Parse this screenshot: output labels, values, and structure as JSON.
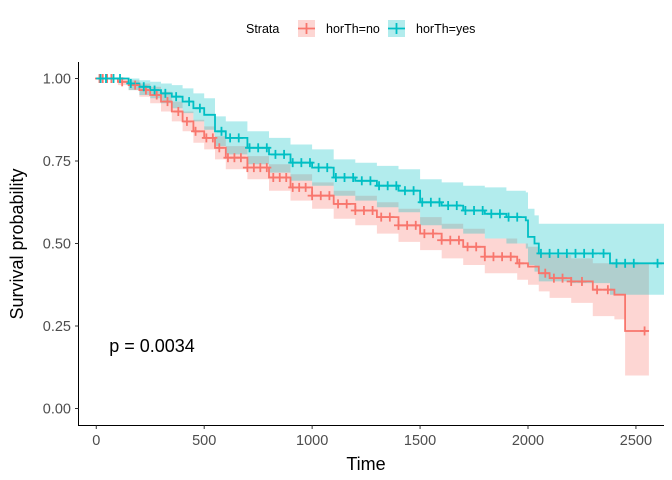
{
  "chart_data": {
    "type": "line",
    "subtype": "kaplan-meier survival curve with confidence bands and censor marks",
    "title": "",
    "xlabel": "Time",
    "ylabel": "Survival probability",
    "xlim": [
      -80,
      2630
    ],
    "ylim": [
      -0.05,
      1.05
    ],
    "xticks": [
      0,
      500,
      1000,
      1500,
      2000,
      2500
    ],
    "yticks": [
      0.0,
      0.25,
      0.5,
      0.75,
      1.0
    ],
    "xtick_labels": [
      "0",
      "500",
      "1000",
      "1500",
      "2000",
      "2500"
    ],
    "ytick_labels": [
      "0.00",
      "0.25",
      "0.50",
      "0.75",
      "1.00"
    ],
    "grid": false,
    "legend": {
      "title": "Strata",
      "placement": "top"
    },
    "annotation": {
      "text": "p = 0.0034",
      "x": 60,
      "y": 0.19
    },
    "series": [
      {
        "name": "horTh=no",
        "color": "#F8766D",
        "x": [
          0,
          100,
          150,
          200,
          250,
          300,
          350,
          400,
          450,
          500,
          550,
          600,
          700,
          800,
          900,
          1000,
          1100,
          1200,
          1300,
          1400,
          1500,
          1600,
          1700,
          1800,
          1950,
          2000,
          2050,
          2100,
          2200,
          2300,
          2400,
          2450,
          2560
        ],
        "y": [
          1.0,
          0.99,
          0.98,
          0.965,
          0.95,
          0.93,
          0.9,
          0.87,
          0.84,
          0.82,
          0.79,
          0.76,
          0.73,
          0.7,
          0.67,
          0.645,
          0.62,
          0.6,
          0.58,
          0.555,
          0.53,
          0.51,
          0.49,
          0.46,
          0.44,
          0.43,
          0.41,
          0.395,
          0.385,
          0.36,
          0.345,
          0.235,
          0.235
        ],
        "lower": [
          1.0,
          0.98,
          0.965,
          0.945,
          0.925,
          0.9,
          0.87,
          0.84,
          0.805,
          0.785,
          0.755,
          0.725,
          0.695,
          0.66,
          0.63,
          0.605,
          0.575,
          0.555,
          0.53,
          0.505,
          0.48,
          0.455,
          0.435,
          0.41,
          0.39,
          0.375,
          0.355,
          0.335,
          0.32,
          0.28,
          0.27,
          0.1,
          0.1
        ],
        "upper": [
          1.0,
          1.0,
          0.995,
          0.985,
          0.975,
          0.96,
          0.93,
          0.9,
          0.875,
          0.855,
          0.825,
          0.795,
          0.765,
          0.74,
          0.71,
          0.685,
          0.66,
          0.645,
          0.625,
          0.605,
          0.58,
          0.56,
          0.545,
          0.515,
          0.5,
          0.49,
          0.47,
          0.465,
          0.455,
          0.44,
          0.44,
          0.44,
          0.44
        ],
        "censor_x": [
          15,
          30,
          50,
          70,
          120,
          180,
          230,
          280,
          330,
          380,
          420,
          460,
          510,
          540,
          570,
          610,
          640,
          670,
          700,
          730,
          760,
          790,
          820,
          850,
          880,
          910,
          940,
          970,
          1000,
          1040,
          1080,
          1120,
          1160,
          1200,
          1240,
          1280,
          1320,
          1360,
          1400,
          1440,
          1480,
          1520,
          1560,
          1600,
          1640,
          1680,
          1720,
          1760,
          1800,
          1840,
          1880,
          1920,
          1960,
          2080,
          2120,
          2160,
          2200,
          2250,
          2320,
          2370,
          2540
        ]
      },
      {
        "name": "horTh=yes",
        "color": "#00BFC4",
        "x": [
          0,
          150,
          200,
          250,
          300,
          350,
          400,
          450,
          500,
          550,
          600,
          700,
          800,
          900,
          1000,
          1100,
          1200,
          1300,
          1400,
          1500,
          1600,
          1700,
          1800,
          1900,
          1990,
          2000,
          2030,
          2050,
          2200,
          2380,
          2630
        ],
        "y": [
          1.0,
          0.985,
          0.975,
          0.965,
          0.955,
          0.945,
          0.93,
          0.91,
          0.89,
          0.84,
          0.82,
          0.79,
          0.77,
          0.745,
          0.73,
          0.7,
          0.69,
          0.675,
          0.66,
          0.625,
          0.615,
          0.6,
          0.59,
          0.58,
          0.57,
          0.52,
          0.5,
          0.47,
          0.47,
          0.44,
          0.44
        ],
        "lower": [
          1.0,
          0.965,
          0.95,
          0.94,
          0.925,
          0.91,
          0.895,
          0.87,
          0.845,
          0.795,
          0.77,
          0.74,
          0.715,
          0.69,
          0.675,
          0.645,
          0.63,
          0.61,
          0.595,
          0.555,
          0.545,
          0.53,
          0.515,
          0.5,
          0.485,
          0.435,
          0.415,
          0.385,
          0.38,
          0.345,
          0.345
        ],
        "upper": [
          1.0,
          1.0,
          0.995,
          0.99,
          0.985,
          0.98,
          0.97,
          0.955,
          0.94,
          0.885,
          0.87,
          0.84,
          0.82,
          0.8,
          0.785,
          0.755,
          0.745,
          0.735,
          0.725,
          0.695,
          0.685,
          0.675,
          0.67,
          0.66,
          0.655,
          0.605,
          0.585,
          0.56,
          0.56,
          0.56,
          0.56
        ],
        "censor_x": [
          20,
          45,
          80,
          110,
          160,
          220,
          270,
          320,
          370,
          430,
          480,
          580,
          620,
          660,
          710,
          750,
          790,
          830,
          870,
          910,
          950,
          990,
          1030,
          1070,
          1110,
          1150,
          1190,
          1230,
          1270,
          1310,
          1350,
          1390,
          1430,
          1470,
          1510,
          1550,
          1590,
          1630,
          1670,
          1710,
          1750,
          1790,
          1830,
          1870,
          1910,
          1950,
          2060,
          2100,
          2140,
          2180,
          2220,
          2260,
          2300,
          2350,
          2410,
          2450,
          2490,
          2600
        ]
      }
    ]
  }
}
